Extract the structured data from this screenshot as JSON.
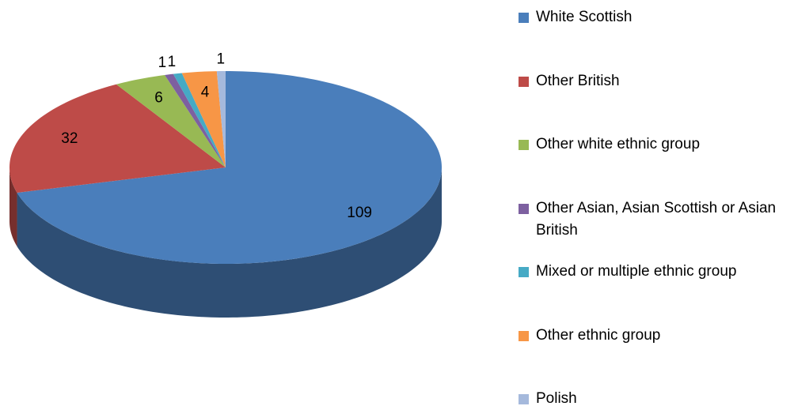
{
  "chart_data": {
    "type": "pie",
    "categories": [
      "White Scottish",
      "Other British",
      "Other white ethnic group",
      "Other Asian, Asian Scottish or Asian British",
      "Mixed or multiple ethnic group",
      "Other ethnic group",
      "Polish"
    ],
    "values": [
      109,
      32,
      6,
      1,
      1,
      4,
      1
    ],
    "colors": [
      "#4a7ebb",
      "#be4b48",
      "#98b954",
      "#7d60a0",
      "#46aac5",
      "#f79646",
      "#a5b9dc"
    ],
    "legend": "right"
  }
}
